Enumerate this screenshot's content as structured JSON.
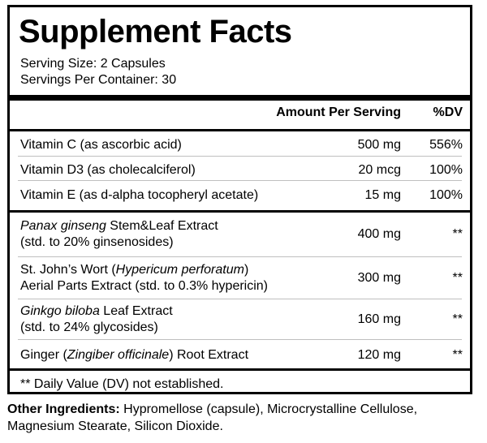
{
  "title": "Supplement Facts",
  "serving_size": "Serving Size: 2 Capsules",
  "servings_per_container": "Servings Per Container: 30",
  "header": {
    "amount": "Amount Per Serving",
    "dv": "%DV"
  },
  "vitamins": [
    {
      "name": "Vitamin C (as ascorbic acid)",
      "amount": "500 mg",
      "dv": "556%"
    },
    {
      "name": "Vitamin D3 (as cholecalciferol)",
      "amount": "20 mcg",
      "dv": "100%"
    },
    {
      "name": "Vitamin E (as d-alpha tocopheryl acetate)",
      "amount": "15 mg",
      "dv": "100%"
    }
  ],
  "extracts": [
    {
      "name_italic": "Panax ginseng",
      "name_rest": " Stem&Leaf Extract",
      "name_line2": "(std. to 20% ginsenosides)",
      "amount": "400 mg",
      "dv": "**"
    },
    {
      "name_pre": "St. John’s Wort (",
      "name_italic": "Hypericum perforatum",
      "name_rest": ")",
      "name_line2": "Aerial Parts Extract (std. to 0.3% hypericin)",
      "amount": "300 mg",
      "dv": "**"
    },
    {
      "name_italic": "Ginkgo biloba",
      "name_rest": " Leaf Extract",
      "name_line2": "(std. to 24% glycosides)",
      "amount": "160 mg",
      "dv": "**"
    },
    {
      "name_pre": "Ginger (",
      "name_italic": "Zingiber officinale",
      "name_rest": ") Root Extract",
      "amount": "120 mg",
      "dv": "**"
    }
  ],
  "footnote": "** Daily Value (DV) not established.",
  "other_ingredients": {
    "label": "Other Ingredients:",
    "text": " Hypromellose (capsule), Microcrystalline Cellulose, Magnesium Stearate, Silicon Dioxide."
  }
}
